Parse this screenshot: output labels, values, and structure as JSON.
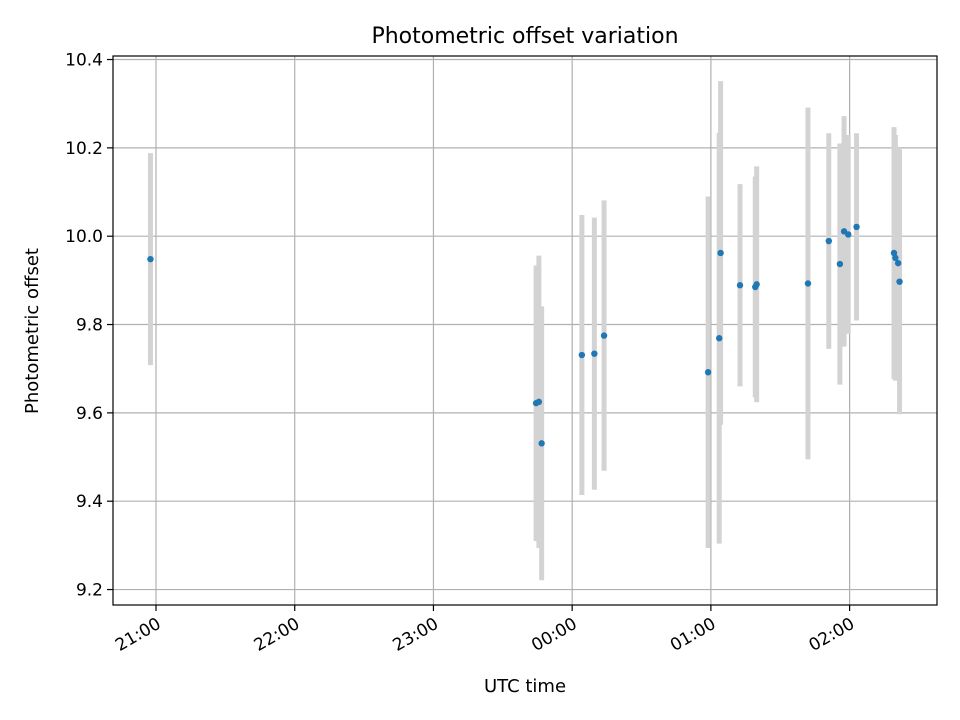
{
  "chart_data": {
    "type": "scatter",
    "title": "Photometric offset variation",
    "xlabel": "UTC time",
    "ylabel": "Photometric offset",
    "x_axis_kind": "time of day (hours from 20:00 UTC, crossing midnight)",
    "xlim": [
      0.69,
      6.63
    ],
    "ylim": [
      9.165,
      10.408
    ],
    "x_ticks": [
      {
        "value": 1.0,
        "label": "21:00"
      },
      {
        "value": 2.0,
        "label": "22:00"
      },
      {
        "value": 3.0,
        "label": "23:00"
      },
      {
        "value": 4.0,
        "label": "00:00"
      },
      {
        "value": 5.0,
        "label": "01:00"
      },
      {
        "value": 6.0,
        "label": "02:00"
      }
    ],
    "y_ticks": [
      {
        "value": 9.2,
        "label": "9.2"
      },
      {
        "value": 9.4,
        "label": "9.4"
      },
      {
        "value": 9.6,
        "label": "9.6"
      },
      {
        "value": 9.8,
        "label": "9.8"
      },
      {
        "value": 10.0,
        "label": "10.0"
      },
      {
        "value": 10.2,
        "label": "10.2"
      },
      {
        "value": 10.4,
        "label": "10.4"
      }
    ],
    "grid": true,
    "legend": "none",
    "point_color": "#1f77b4",
    "errorbar_color": "#d3d3d3",
    "points": [
      {
        "x": 0.96,
        "y": 9.948,
        "ylow": 9.708,
        "yhigh": 10.188
      },
      {
        "x": 3.74,
        "y": 9.622,
        "ylow": 9.31,
        "yhigh": 9.934
      },
      {
        "x": 3.76,
        "y": 9.625,
        "ylow": 9.294,
        "yhigh": 9.956
      },
      {
        "x": 3.78,
        "y": 9.531,
        "ylow": 9.221,
        "yhigh": 9.841
      },
      {
        "x": 4.07,
        "y": 9.731,
        "ylow": 9.414,
        "yhigh": 10.048
      },
      {
        "x": 4.16,
        "y": 9.734,
        "ylow": 9.426,
        "yhigh": 10.042
      },
      {
        "x": 4.23,
        "y": 9.775,
        "ylow": 9.469,
        "yhigh": 10.081
      },
      {
        "x": 4.98,
        "y": 9.692,
        "ylow": 9.294,
        "yhigh": 10.09
      },
      {
        "x": 5.06,
        "y": 9.769,
        "ylow": 9.304,
        "yhigh": 10.234
      },
      {
        "x": 5.07,
        "y": 9.962,
        "ylow": 9.573,
        "yhigh": 10.351
      },
      {
        "x": 5.21,
        "y": 9.889,
        "ylow": 9.66,
        "yhigh": 10.118
      },
      {
        "x": 5.32,
        "y": 9.885,
        "ylow": 9.635,
        "yhigh": 10.135
      },
      {
        "x": 5.33,
        "y": 9.891,
        "ylow": 9.624,
        "yhigh": 10.158
      },
      {
        "x": 5.7,
        "y": 9.893,
        "ylow": 9.495,
        "yhigh": 10.291
      },
      {
        "x": 5.85,
        "y": 9.989,
        "ylow": 9.745,
        "yhigh": 10.233
      },
      {
        "x": 5.93,
        "y": 9.937,
        "ylow": 9.664,
        "yhigh": 10.21
      },
      {
        "x": 5.96,
        "y": 10.011,
        "ylow": 9.75,
        "yhigh": 10.272
      },
      {
        "x": 5.99,
        "y": 10.004,
        "ylow": 9.779,
        "yhigh": 10.229
      },
      {
        "x": 6.05,
        "y": 10.021,
        "ylow": 9.809,
        "yhigh": 10.233
      },
      {
        "x": 6.32,
        "y": 9.962,
        "ylow": 9.677,
        "yhigh": 10.247
      },
      {
        "x": 6.33,
        "y": 9.951,
        "ylow": 9.673,
        "yhigh": 10.229
      },
      {
        "x": 6.35,
        "y": 9.939,
        "ylow": 9.678,
        "yhigh": 10.2
      },
      {
        "x": 6.36,
        "y": 9.897,
        "ylow": 9.597,
        "yhigh": 10.197
      }
    ]
  }
}
